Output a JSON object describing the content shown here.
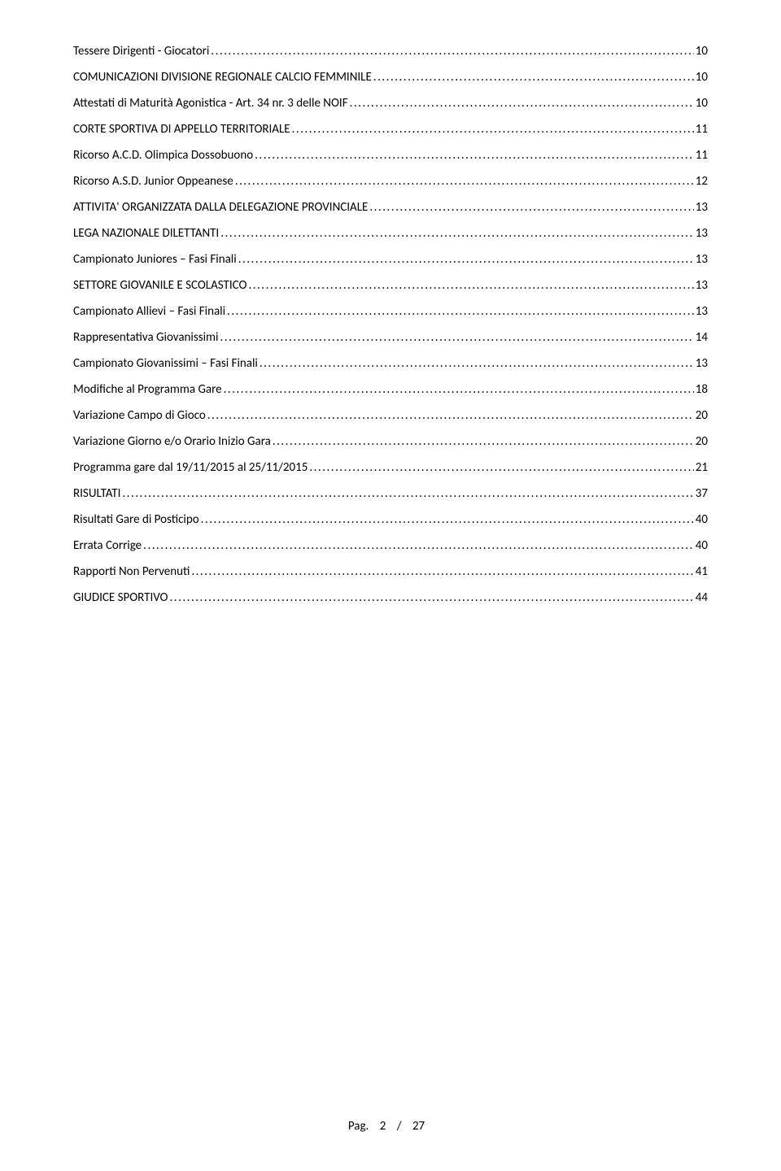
{
  "toc": {
    "items": [
      {
        "label": "Tessere Dirigenti - Giocatori",
        "page": "10"
      },
      {
        "label": "COMUNICAZIONI DIVISIONE REGIONALE CALCIO FEMMINILE",
        "page": "10"
      },
      {
        "label": "Attestati di Maturità Agonistica - Art. 34 nr. 3 delle NOIF",
        "page": "10"
      },
      {
        "label": "CORTE SPORTIVA DI APPELLO TERRITORIALE",
        "page": "11"
      },
      {
        "label": "Ricorso A.C.D. Olimpica Dossobuono",
        "page": "11"
      },
      {
        "label": "Ricorso A.S.D. Junior Oppeanese",
        "page": "12"
      },
      {
        "label": "ATTIVITA' ORGANIZZATA DALLA DELEGAZIONE PROVINCIALE",
        "page": "13"
      },
      {
        "label": "LEGA NAZIONALE DILETTANTI",
        "page": "13"
      },
      {
        "label": "Campionato Juniores – Fasi Finali",
        "page": "13"
      },
      {
        "label": "SETTORE GIOVANILE E SCOLASTICO",
        "page": "13"
      },
      {
        "label": "Campionato Allievi – Fasi Finali",
        "page": "13"
      },
      {
        "label": "Rappresentativa Giovanissimi",
        "page": "14"
      },
      {
        "label": "Campionato Giovanissimi – Fasi Finali",
        "page": "13"
      },
      {
        "label": "Modifiche al Programma Gare",
        "page": "18"
      },
      {
        "label": "Variazione Campo di Gioco",
        "page": "20"
      },
      {
        "label": "Variazione Giorno e/o Orario Inizio Gara",
        "page": "20"
      },
      {
        "label": "Programma gare dal 19/11/2015 al 25/11/2015",
        "page": "21"
      },
      {
        "label": "RISULTATI",
        "page": "37"
      },
      {
        "label": "Risultati Gare di Posticipo",
        "page": "40"
      },
      {
        "label": "Errata Corrige",
        "page": "40"
      },
      {
        "label": "Rapporti Non Pervenuti",
        "page": "41"
      },
      {
        "label": "GIUDICE SPORTIVO",
        "page": "44"
      }
    ]
  },
  "footer": {
    "prefix": "Pag.",
    "current": "2",
    "sep": "/",
    "total": "27"
  }
}
